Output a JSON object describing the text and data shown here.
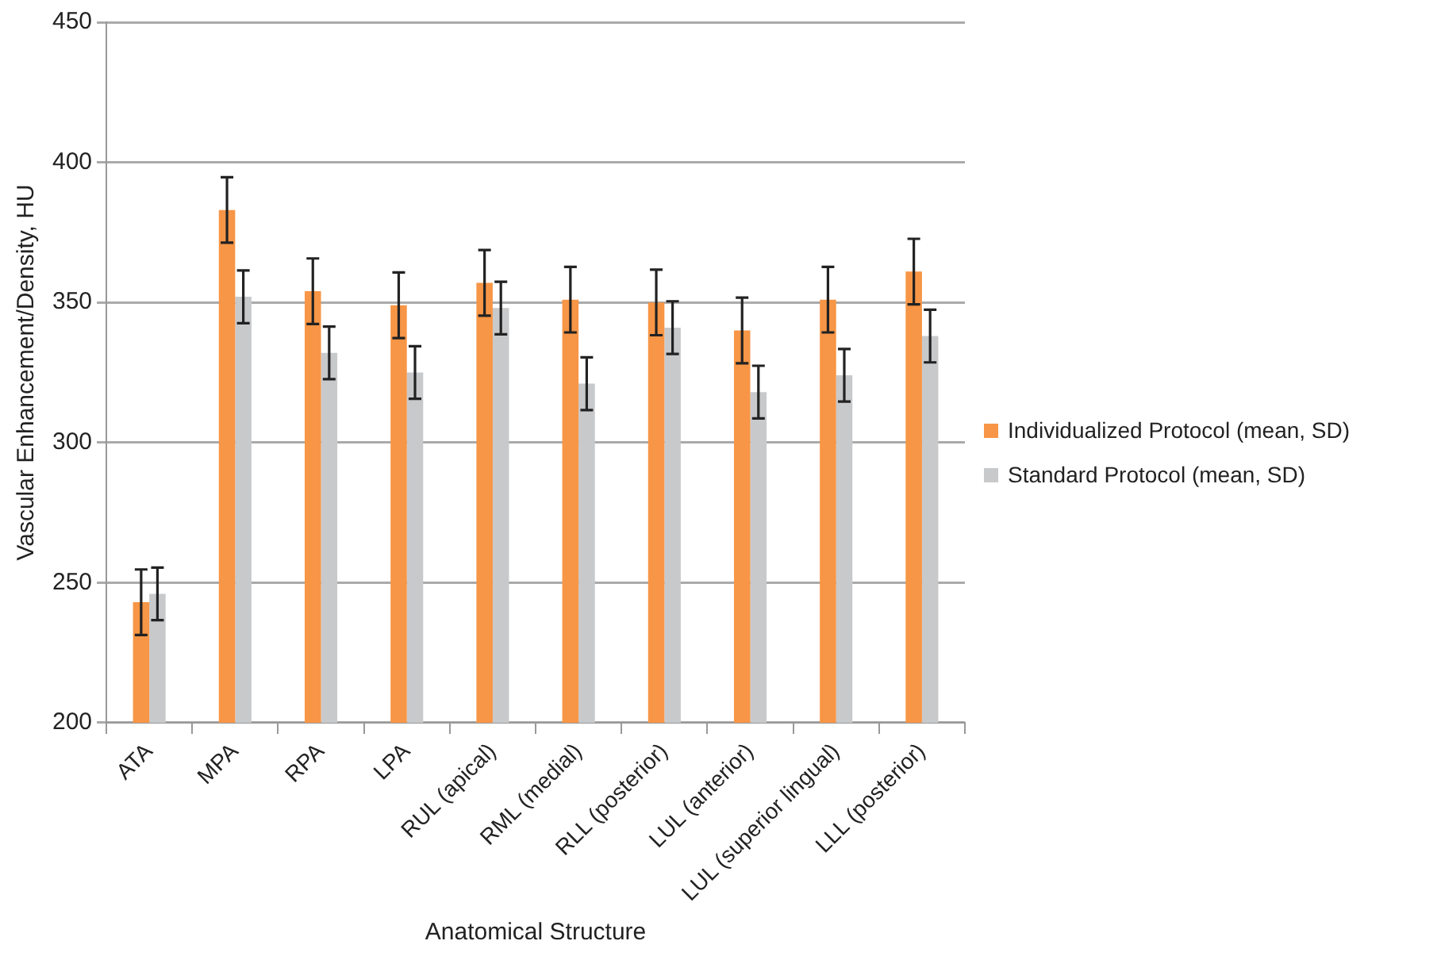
{
  "chart_data": {
    "type": "bar",
    "xlabel": "Anatomical Structure",
    "ylabel": "Vascular Enhancement/Density, HU",
    "categories": [
      "ATA",
      "MPA",
      "RPA",
      "LPA",
      "RUL (apical)",
      "RML (medial)",
      "RLL (posterior)",
      "LUL (anterior)",
      "LUL (superior lingual)",
      "LLL (posterior)"
    ],
    "series": [
      {
        "name": "Individualized Protocol (mean, SD)",
        "color": "#f79646",
        "values": [
          243,
          383,
          354,
          349,
          357,
          351,
          350,
          340,
          351,
          361
        ],
        "errors": [
          11.7,
          11.7,
          11.7,
          11.7,
          11.7,
          11.7,
          11.7,
          11.7,
          11.7,
          11.7
        ]
      },
      {
        "name": "Standard Protocol (mean, SD)",
        "color": "#c8c9cb",
        "values": [
          246,
          352,
          332,
          325,
          348,
          321,
          341,
          318,
          324,
          338
        ],
        "errors": [
          9.4,
          9.4,
          9.4,
          9.4,
          9.4,
          9.4,
          9.4,
          9.4,
          9.4,
          9.4
        ]
      }
    ],
    "ylim": [
      200,
      450
    ],
    "yticks": [
      200,
      250,
      300,
      350,
      400,
      450
    ],
    "grid": "y",
    "legend": "right"
  }
}
